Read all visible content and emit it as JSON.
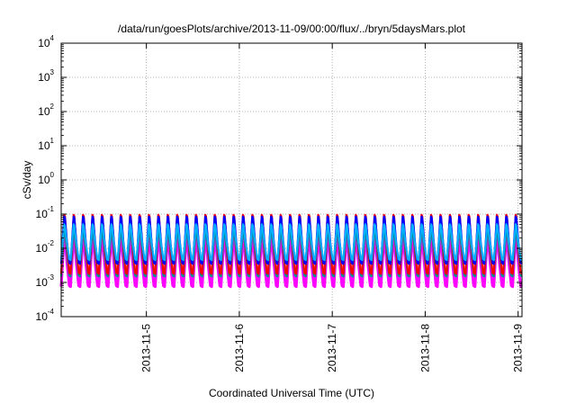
{
  "chart_data": {
    "type": "line",
    "title": "/data/run/goesPlots/archive/2013-11-09/00:00/flux/../bryn/5daysMars.plot",
    "xlabel": "Coordinated Universal Time (UTC)",
    "ylabel": "cSv/day",
    "y_scale": "log",
    "ylim": [
      0.0001,
      10000
    ],
    "xlim": [
      "2013-11-04 02:00",
      "2013-11-09 01:00"
    ],
    "grid": true,
    "x_ticks": [
      "2013-11-5",
      "2013-11-6",
      "2013-11-7",
      "2013-11-8",
      "2013-11-9"
    ],
    "y_ticks": [
      {
        "base": "10",
        "exp": "4",
        "value": 10000
      },
      {
        "base": "10",
        "exp": "3",
        "value": 1000
      },
      {
        "base": "10",
        "exp": "2",
        "value": 100
      },
      {
        "base": "10",
        "exp": "1",
        "value": 10
      },
      {
        "base": "10",
        "exp": "0",
        "value": 1
      },
      {
        "base": "10",
        "exp": "-1",
        "value": 0.1
      },
      {
        "base": "10",
        "exp": "-2",
        "value": 0.01
      },
      {
        "base": "10",
        "exp": "-3",
        "value": 0.001
      },
      {
        "base": "10",
        "exp": "-4",
        "value": 0.0001
      }
    ],
    "cycles_count": 49,
    "series": [
      {
        "color": "#ff00ff",
        "peak": 0.022,
        "trough": 0.00075
      },
      {
        "color": "#009090",
        "peak": 0.04,
        "trough": 0.0015
      },
      {
        "color": "#ff0000",
        "peak": 0.095,
        "trough": 0.0018
      },
      {
        "color": "#0000ff",
        "peak": 0.085,
        "trough": 0.0035
      },
      {
        "color": "#00b0ff",
        "peak": 0.05,
        "trough": 0.0045
      }
    ]
  }
}
